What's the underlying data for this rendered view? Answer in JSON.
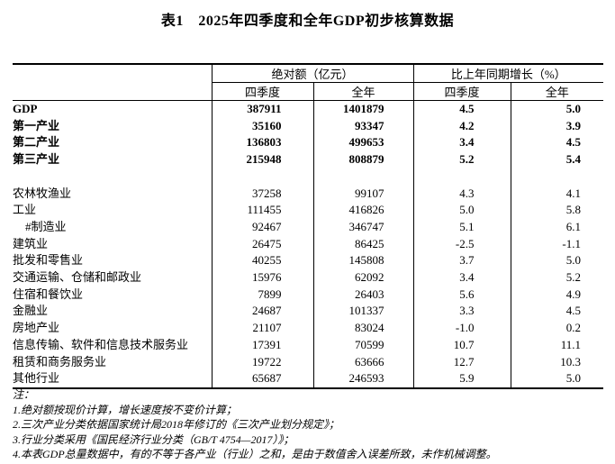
{
  "title": "表1　2025年四季度和全年GDP初步核算数据",
  "table": {
    "col_groups": [
      {
        "label": "绝对额（亿元）"
      },
      {
        "label": "比上年同期增长（%）"
      }
    ],
    "sub_headers": [
      "四季度",
      "全年",
      "四季度",
      "全年"
    ],
    "rows": [
      {
        "label": "GDP",
        "bold": true,
        "values": [
          "387911",
          "1401879",
          "4.5",
          "5.0"
        ]
      },
      {
        "label": "第一产业",
        "bold": true,
        "values": [
          "35160",
          "93347",
          "4.2",
          "3.9"
        ]
      },
      {
        "label": "第二产业",
        "bold": true,
        "values": [
          "136803",
          "499653",
          "3.4",
          "4.5"
        ]
      },
      {
        "label": "第三产业",
        "bold": true,
        "values": [
          "215948",
          "808879",
          "5.2",
          "5.4"
        ]
      },
      {
        "spacer": true
      },
      {
        "label": "农林牧渔业",
        "values": [
          "37258",
          "99107",
          "4.3",
          "4.1"
        ]
      },
      {
        "label": "工业",
        "values": [
          "111455",
          "416826",
          "5.0",
          "5.8"
        ]
      },
      {
        "label": "#制造业",
        "indent": true,
        "values": [
          "92467",
          "346747",
          "5.1",
          "6.1"
        ]
      },
      {
        "label": "建筑业",
        "values": [
          "26475",
          "86425",
          "-2.5",
          "-1.1"
        ]
      },
      {
        "label": "批发和零售业",
        "values": [
          "40255",
          "145808",
          "3.7",
          "5.0"
        ]
      },
      {
        "label": "交通运输、仓储和邮政业",
        "values": [
          "15976",
          "62092",
          "3.4",
          "5.2"
        ]
      },
      {
        "label": "住宿和餐饮业",
        "values": [
          "7899",
          "26403",
          "5.6",
          "4.9"
        ]
      },
      {
        "label": "金融业",
        "values": [
          "24687",
          "101337",
          "3.3",
          "4.5"
        ]
      },
      {
        "label": "房地产业",
        "values": [
          "21107",
          "83024",
          "-1.0",
          "0.2"
        ]
      },
      {
        "label": "信息传输、软件和信息技术服务业",
        "values": [
          "17391",
          "70599",
          "10.7",
          "11.1"
        ]
      },
      {
        "label": "租赁和商务服务业",
        "values": [
          "19722",
          "63666",
          "12.7",
          "10.3"
        ]
      },
      {
        "label": "其他行业",
        "values": [
          "65687",
          "246593",
          "5.9",
          "5.0"
        ]
      }
    ]
  },
  "notes": {
    "label": "注：",
    "items": [
      "1.绝对额按现价计算，增长速度按不变价计算；",
      "2.三次产业分类依据国家统计局2018年修订的《三次产业划分规定》；",
      "3.行业分类采用《国民经济行业分类（GB/T 4754—2017）》；",
      "4.本表GDP总量数据中，有的不等于各产业（行业）之和，是由于数值舍入误差所致，未作机械调整。"
    ]
  }
}
